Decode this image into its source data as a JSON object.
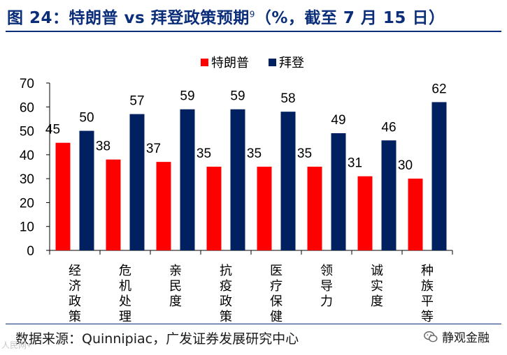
{
  "header": {
    "title": "图 24：特朗普 vs 拜登政策预期",
    "title_footnote": "9",
    "title_suffix": "（%，截至 7 月 15 日）"
  },
  "footer": {
    "source": "数据来源：Quinnipiac，广发证券发展研究中心",
    "watermark_left": "人民网+",
    "watermark_right": "静观金融"
  },
  "colors": {
    "trump": "#ff0000",
    "biden": "#002060",
    "rule": "#0b2e7a"
  },
  "chart_data": {
    "type": "bar",
    "title": "",
    "xlabel": "",
    "ylabel": "",
    "ylim": [
      0,
      70
    ],
    "yticks": [
      0,
      10,
      20,
      30,
      40,
      50,
      60,
      70
    ],
    "grid": false,
    "legend_position": "top",
    "categories": [
      "经济政策",
      "危机处理",
      "亲民度",
      "抗疫政策",
      "医疗保健",
      "领导力",
      "诚实度",
      "种族平等"
    ],
    "series": [
      {
        "name": "特朗普",
        "values": [
          45,
          38,
          37,
          35,
          35,
          35,
          31,
          30
        ]
      },
      {
        "name": "拜登",
        "values": [
          50,
          57,
          59,
          59,
          58,
          49,
          46,
          62
        ]
      }
    ]
  }
}
